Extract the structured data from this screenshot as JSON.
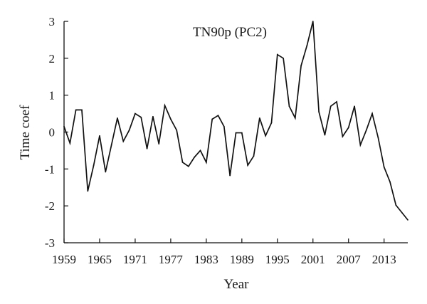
{
  "chart_data": {
    "type": "line",
    "title": "TN90p (PC2)",
    "xlabel": "Year",
    "ylabel": "Time coef",
    "xlim": [
      1959,
      2017
    ],
    "ylim": [
      -3,
      3
    ],
    "xticks": [
      1959,
      1965,
      1971,
      1977,
      1983,
      1989,
      1995,
      2001,
      2007,
      2013
    ],
    "xtick_labels": [
      "1959",
      "1965",
      "1971",
      "1977",
      "1983",
      "1989",
      "1995",
      "2001",
      "2007",
      "2013"
    ],
    "yticks": [
      3,
      2,
      1,
      0,
      -1,
      -2,
      -3
    ],
    "ytick_labels": [
      "3",
      "2",
      "1",
      "0",
      "-1",
      "-2",
      "-3"
    ],
    "grid": false,
    "legend": "none",
    "x": [
      1959,
      1960,
      1961,
      1962,
      1963,
      1964,
      1965,
      1966,
      1967,
      1968,
      1969,
      1970,
      1971,
      1972,
      1973,
      1974,
      1975,
      1976,
      1977,
      1978,
      1979,
      1980,
      1981,
      1982,
      1983,
      1984,
      1985,
      1986,
      1987,
      1988,
      1989,
      1990,
      1991,
      1992,
      1993,
      1994,
      1995,
      1996,
      1997,
      1998,
      1999,
      2000,
      2001,
      2002,
      2003,
      2004,
      2005,
      2006,
      2007,
      2008,
      2009,
      2010,
      2011,
      2012,
      2013,
      2014,
      2015,
      2016,
      2017
    ],
    "series": [
      {
        "values": [
          0.15,
          -0.3,
          0.6,
          0.6,
          -1.6,
          -0.9,
          -0.1,
          -1.08,
          -0.35,
          0.38,
          -0.25,
          0.05,
          0.5,
          0.4,
          -0.45,
          0.42,
          -0.32,
          0.72,
          0.35,
          0.05,
          -0.82,
          -0.93,
          -0.68,
          -0.5,
          -0.82,
          0.35,
          0.45,
          0.15,
          -1.18,
          -0.02,
          -0.02,
          -0.9,
          -0.65,
          0.38,
          -0.1,
          0.25,
          2.1,
          2.0,
          0.7,
          0.38,
          1.8,
          2.35,
          3.0,
          0.55,
          -0.08,
          0.7,
          0.82,
          -0.12,
          0.12,
          0.7,
          -0.35,
          0.05,
          0.5,
          -0.15,
          -0.95,
          -1.35,
          -1.98,
          -2.18,
          -2.38
        ]
      }
    ],
    "colors": {
      "line": "#111111",
      "axis": "#111111",
      "text": "#1a1a1a",
      "background": "#ffffff"
    }
  }
}
